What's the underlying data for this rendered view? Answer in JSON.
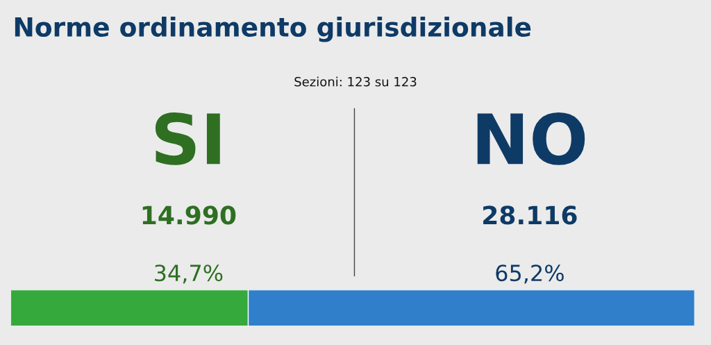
{
  "chart_data": {
    "type": "bar",
    "orientation": "horizontal",
    "stacked": true,
    "title": "Norme ordinamento giurisdizionale",
    "subtitle": "Sezioni: 123 su 123",
    "categories": [
      null
    ],
    "series": [
      {
        "name": "SI",
        "color": "#35a93b",
        "values": [
          34.7
        ],
        "value_labels": [
          "34,7%"
        ]
      },
      {
        "name": "NO",
        "color": "#2f7fcb",
        "values": [
          65.2
        ],
        "value_labels": [
          "65,2%"
        ]
      }
    ],
    "annotations": [
      "14.990",
      "28.116"
    ],
    "legend": false
  }
}
